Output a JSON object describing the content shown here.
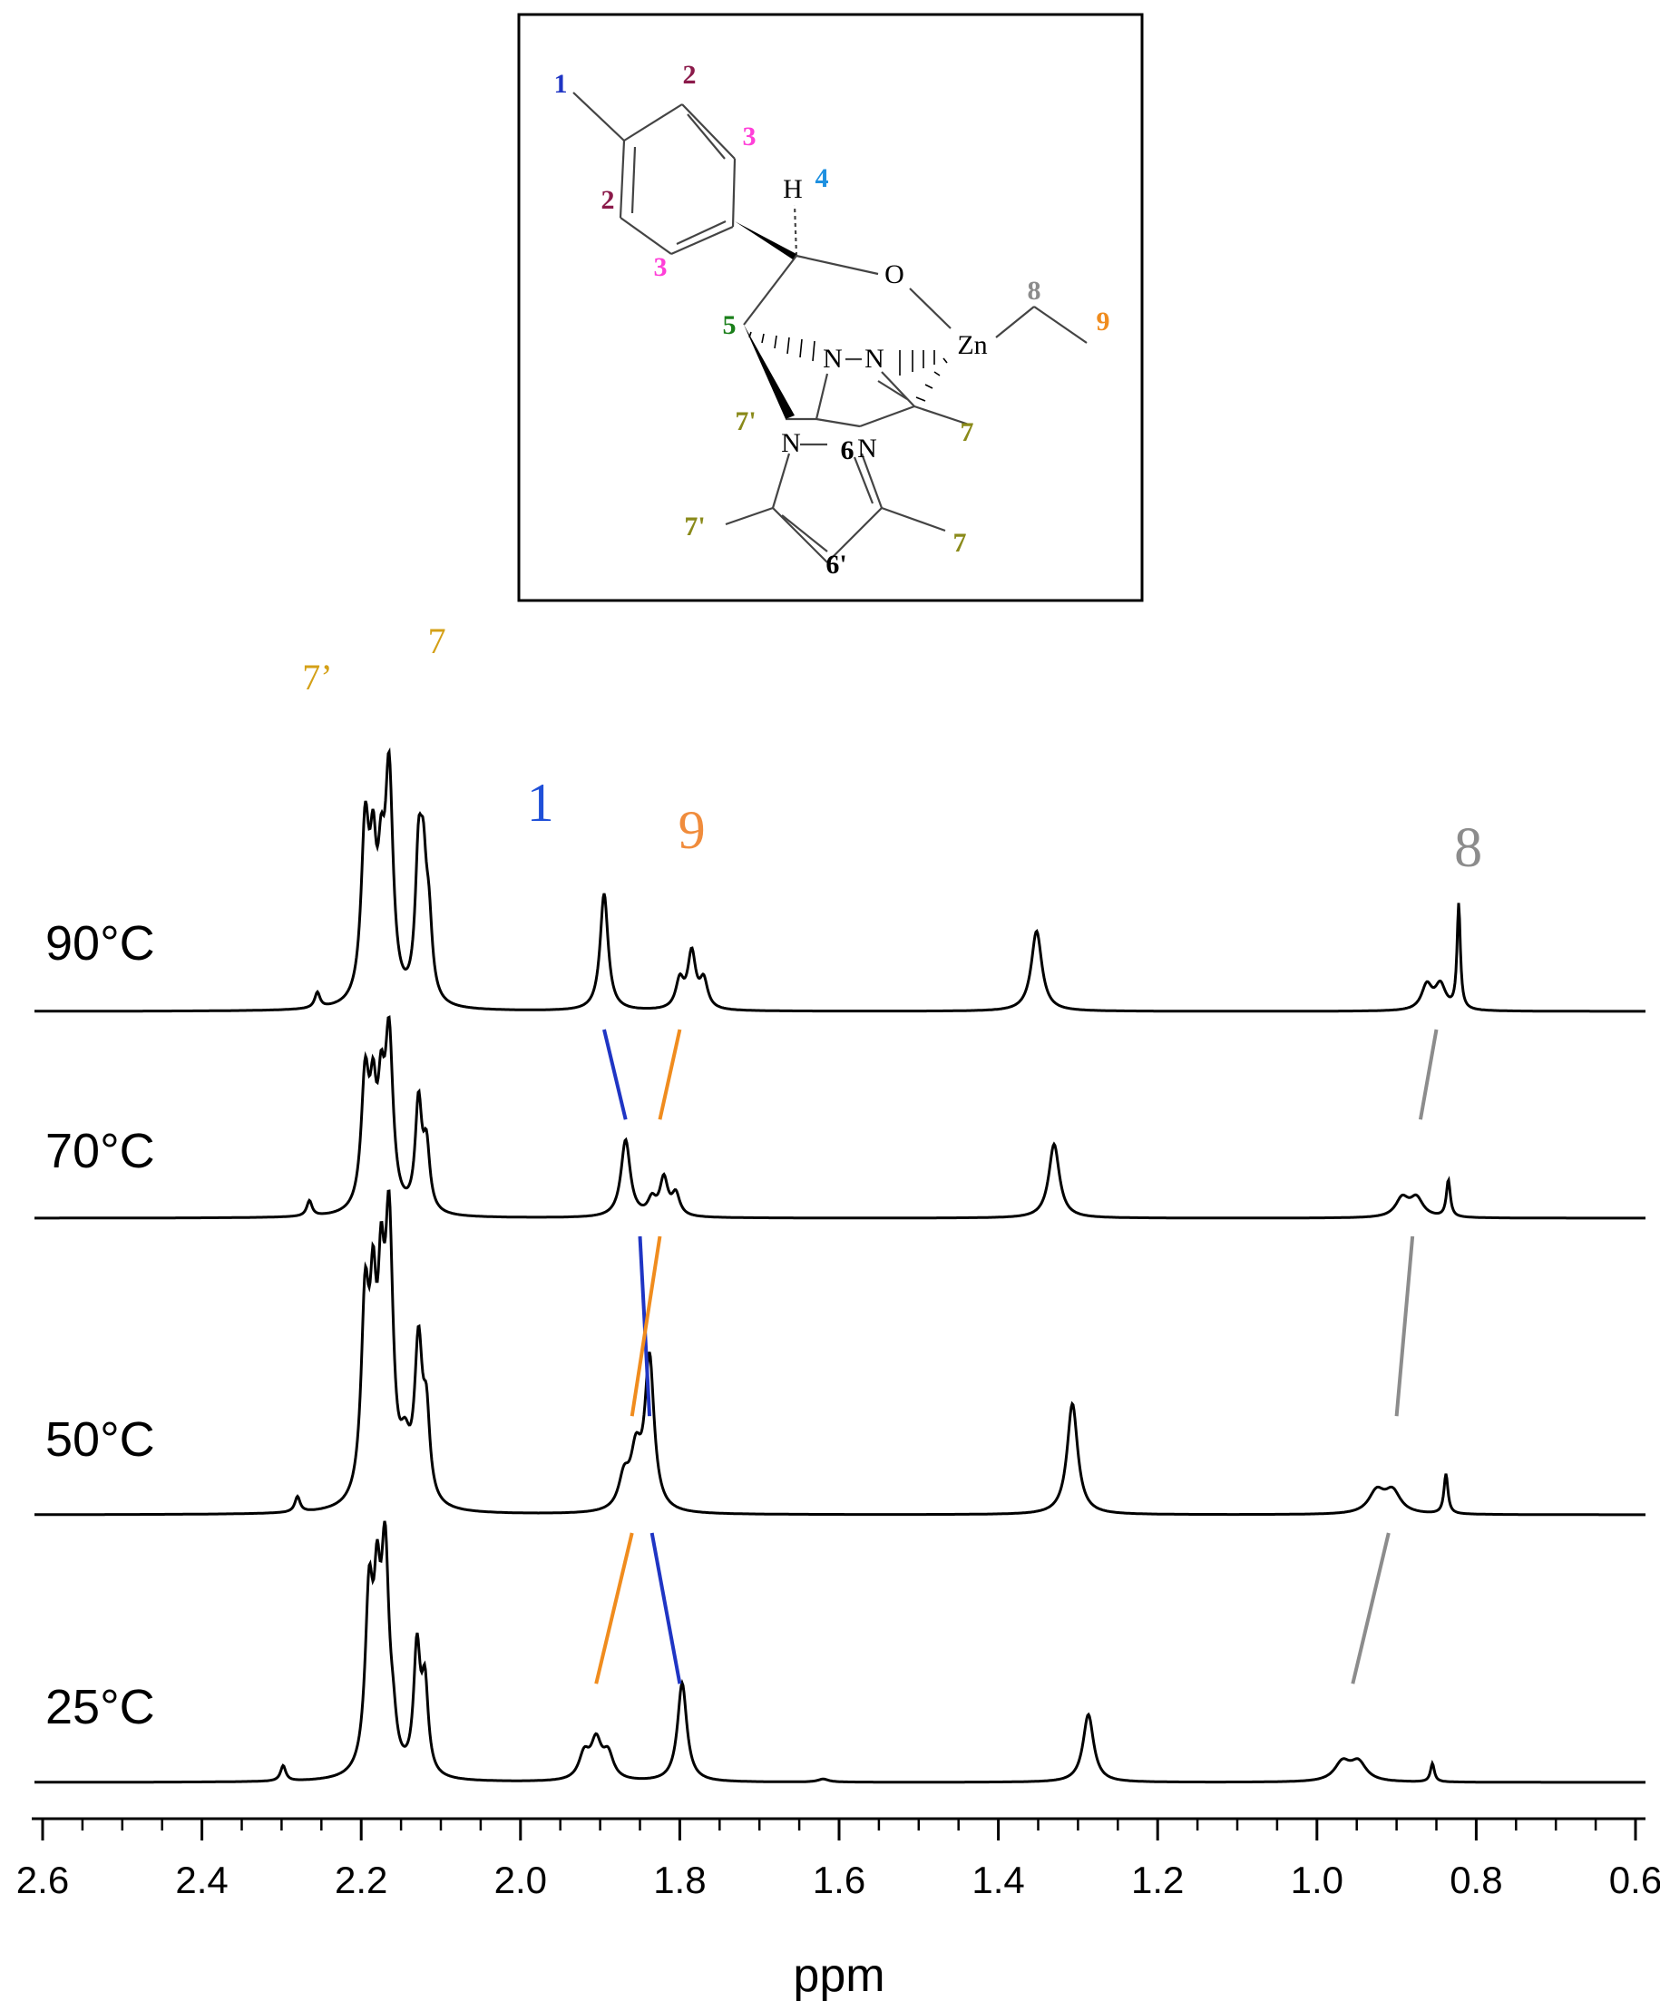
{
  "molecule": {
    "atoms": {
      "H": "H",
      "O": "O",
      "N": "N",
      "Zn": "Zn"
    },
    "labels": {
      "p1": "1",
      "p2a": "2",
      "p2b": "2",
      "p3a": "3",
      "p3b": "3",
      "p4": "4",
      "p5": "5",
      "p6": "6",
      "p6p": "6'",
      "p7a": "7",
      "p7b": "7",
      "p7pa": "7'",
      "p7pb": "7'",
      "p8": "8",
      "p9": "9"
    },
    "colors": {
      "1": "#1f35c4",
      "2": "#8b1a4a",
      "3": "#ff3fd8",
      "4": "#1e90e0",
      "5": "#1a7f1a",
      "6": "#000000",
      "7": "#8a8a1a",
      "8": "#8c8c8c",
      "9": "#f08c1e"
    }
  },
  "chart_data": {
    "type": "line",
    "xlabel": "ppm",
    "xlim": [
      2.6,
      0.55
    ],
    "x_reversed": true,
    "x_ticks": [
      2.6,
      2.4,
      2.2,
      2.0,
      1.8,
      1.6,
      1.4,
      1.2,
      1.0,
      0.8,
      0.6
    ],
    "x_tick_labels": [
      "2.6",
      "2.4",
      "2.2",
      "2.0",
      "1.8",
      "1.6",
      "1.4",
      "1.2",
      "1.0",
      "0.8",
      "0.6"
    ],
    "series": [
      {
        "name": "90°C",
        "peaks": [
          {
            "ppm": 2.255,
            "h": 0.05,
            "w": 0.004
          },
          {
            "ppm": 2.195,
            "h": 0.55,
            "w": 0.006
          },
          {
            "ppm": 2.185,
            "h": 0.38,
            "w": 0.005
          },
          {
            "ppm": 2.175,
            "h": 0.32,
            "w": 0.005
          },
          {
            "ppm": 2.165,
            "h": 0.72,
            "w": 0.006
          },
          {
            "ppm": 2.128,
            "h": 0.42,
            "w": 0.005
          },
          {
            "ppm": 2.122,
            "h": 0.35,
            "w": 0.005
          },
          {
            "ppm": 2.115,
            "h": 0.22,
            "w": 0.005
          },
          {
            "ppm": 1.895,
            "h": 0.38,
            "w": 0.006
          },
          {
            "ppm": 1.8,
            "h": 0.09,
            "w": 0.006
          },
          {
            "ppm": 1.785,
            "h": 0.18,
            "w": 0.006
          },
          {
            "ppm": 1.77,
            "h": 0.09,
            "w": 0.006
          },
          {
            "ppm": 1.352,
            "h": 0.26,
            "w": 0.008
          },
          {
            "ppm": 0.862,
            "h": 0.08,
            "w": 0.008
          },
          {
            "ppm": 0.845,
            "h": 0.08,
            "w": 0.008
          },
          {
            "ppm": 0.822,
            "h": 0.34,
            "w": 0.0025
          }
        ]
      },
      {
        "name": "70°C",
        "peaks": [
          {
            "ppm": 2.265,
            "h": 0.05,
            "w": 0.004
          },
          {
            "ppm": 2.195,
            "h": 0.42,
            "w": 0.006
          },
          {
            "ppm": 2.185,
            "h": 0.3,
            "w": 0.005
          },
          {
            "ppm": 2.175,
            "h": 0.3,
            "w": 0.005
          },
          {
            "ppm": 2.165,
            "h": 0.55,
            "w": 0.006
          },
          {
            "ppm": 2.128,
            "h": 0.35,
            "w": 0.005
          },
          {
            "ppm": 2.118,
            "h": 0.2,
            "w": 0.005
          },
          {
            "ppm": 1.868,
            "h": 0.25,
            "w": 0.007
          },
          {
            "ppm": 1.835,
            "h": 0.05,
            "w": 0.006
          },
          {
            "ppm": 1.82,
            "h": 0.12,
            "w": 0.006
          },
          {
            "ppm": 1.805,
            "h": 0.07,
            "w": 0.006
          },
          {
            "ppm": 1.33,
            "h": 0.24,
            "w": 0.008
          },
          {
            "ppm": 0.893,
            "h": 0.06,
            "w": 0.01
          },
          {
            "ppm": 0.875,
            "h": 0.06,
            "w": 0.01
          },
          {
            "ppm": 0.835,
            "h": 0.12,
            "w": 0.003
          }
        ]
      },
      {
        "name": "50°C",
        "peaks": [
          {
            "ppm": 2.28,
            "h": 0.05,
            "w": 0.004
          },
          {
            "ppm": 2.195,
            "h": 0.62,
            "w": 0.006
          },
          {
            "ppm": 2.185,
            "h": 0.52,
            "w": 0.005
          },
          {
            "ppm": 2.175,
            "h": 0.55,
            "w": 0.005
          },
          {
            "ppm": 2.165,
            "h": 0.85,
            "w": 0.006
          },
          {
            "ppm": 2.145,
            "h": 0.15,
            "w": 0.008
          },
          {
            "ppm": 2.128,
            "h": 0.5,
            "w": 0.006
          },
          {
            "ppm": 2.118,
            "h": 0.25,
            "w": 0.005
          },
          {
            "ppm": 1.87,
            "h": 0.1,
            "w": 0.008
          },
          {
            "ppm": 1.855,
            "h": 0.17,
            "w": 0.008
          },
          {
            "ppm": 1.838,
            "h": 0.49,
            "w": 0.007
          },
          {
            "ppm": 1.307,
            "h": 0.36,
            "w": 0.008
          },
          {
            "ppm": 0.925,
            "h": 0.07,
            "w": 0.012
          },
          {
            "ppm": 0.905,
            "h": 0.07,
            "w": 0.012
          },
          {
            "ppm": 0.838,
            "h": 0.13,
            "w": 0.003
          }
        ]
      },
      {
        "name": "25°C",
        "peaks": [
          {
            "ppm": 2.298,
            "h": 0.05,
            "w": 0.004
          },
          {
            "ppm": 2.19,
            "h": 0.55,
            "w": 0.006
          },
          {
            "ppm": 2.18,
            "h": 0.45,
            "w": 0.005
          },
          {
            "ppm": 2.17,
            "h": 0.68,
            "w": 0.006
          },
          {
            "ppm": 2.16,
            "h": 0.1,
            "w": 0.005
          },
          {
            "ppm": 2.13,
            "h": 0.4,
            "w": 0.005
          },
          {
            "ppm": 2.12,
            "h": 0.28,
            "w": 0.005
          },
          {
            "ppm": 1.92,
            "h": 0.08,
            "w": 0.008
          },
          {
            "ppm": 1.905,
            "h": 0.12,
            "w": 0.008
          },
          {
            "ppm": 1.89,
            "h": 0.08,
            "w": 0.008
          },
          {
            "ppm": 1.797,
            "h": 0.32,
            "w": 0.007
          },
          {
            "ppm": 1.62,
            "h": 0.01,
            "w": 0.008
          },
          {
            "ppm": 1.287,
            "h": 0.22,
            "w": 0.008
          },
          {
            "ppm": 0.968,
            "h": 0.06,
            "w": 0.012
          },
          {
            "ppm": 0.948,
            "h": 0.06,
            "w": 0.012
          },
          {
            "ppm": 0.855,
            "h": 0.06,
            "w": 0.003
          }
        ]
      }
    ],
    "peak_labels": [
      {
        "text": "7’",
        "color": "#d4a017"
      },
      {
        "text": "7",
        "color": "#d4a017"
      },
      {
        "text": "1",
        "color": "#1f4fd8"
      },
      {
        "text": "9",
        "color": "#f08c3c"
      },
      {
        "text": "8",
        "color": "#8c8c8c"
      }
    ],
    "shift_lines": [
      {
        "group": "1",
        "color": "#1f35c4",
        "from": {
          "series": "90°C",
          "ppm": 1.895
        },
        "to": {
          "series": "70°C",
          "ppm": 1.868
        }
      },
      {
        "group": "9",
        "color": "#f08c1e",
        "from": {
          "series": "90°C",
          "ppm": 1.8
        },
        "to": {
          "series": "70°C",
          "ppm": 1.825
        }
      },
      {
        "group": "8",
        "color": "#8c8c8c",
        "from": {
          "series": "90°C",
          "ppm": 0.85
        },
        "to": {
          "series": "70°C",
          "ppm": 0.87
        }
      },
      {
        "group": "1",
        "color": "#1f35c4",
        "from": {
          "series": "70°C",
          "ppm": 1.85
        },
        "to": {
          "series": "50°C",
          "ppm": 1.838
        }
      },
      {
        "group": "9",
        "color": "#f08c1e",
        "from": {
          "series": "70°C",
          "ppm": 1.825
        },
        "to": {
          "series": "50°C",
          "ppm": 1.86
        }
      },
      {
        "group": "8",
        "color": "#8c8c8c",
        "from": {
          "series": "70°C",
          "ppm": 0.88
        },
        "to": {
          "series": "50°C",
          "ppm": 0.9
        }
      },
      {
        "group": "9",
        "color": "#f08c1e",
        "from": {
          "series": "50°C",
          "ppm": 1.86
        },
        "to": {
          "series": "25°C",
          "ppm": 1.905
        }
      },
      {
        "group": "1",
        "color": "#1f35c4",
        "from": {
          "series": "50°C",
          "ppm": 1.835
        },
        "to": {
          "series": "25°C",
          "ppm": 1.8
        }
      },
      {
        "group": "8",
        "color": "#8c8c8c",
        "from": {
          "series": "50°C",
          "ppm": 0.91
        },
        "to": {
          "series": "25°C",
          "ppm": 0.955
        }
      }
    ]
  }
}
